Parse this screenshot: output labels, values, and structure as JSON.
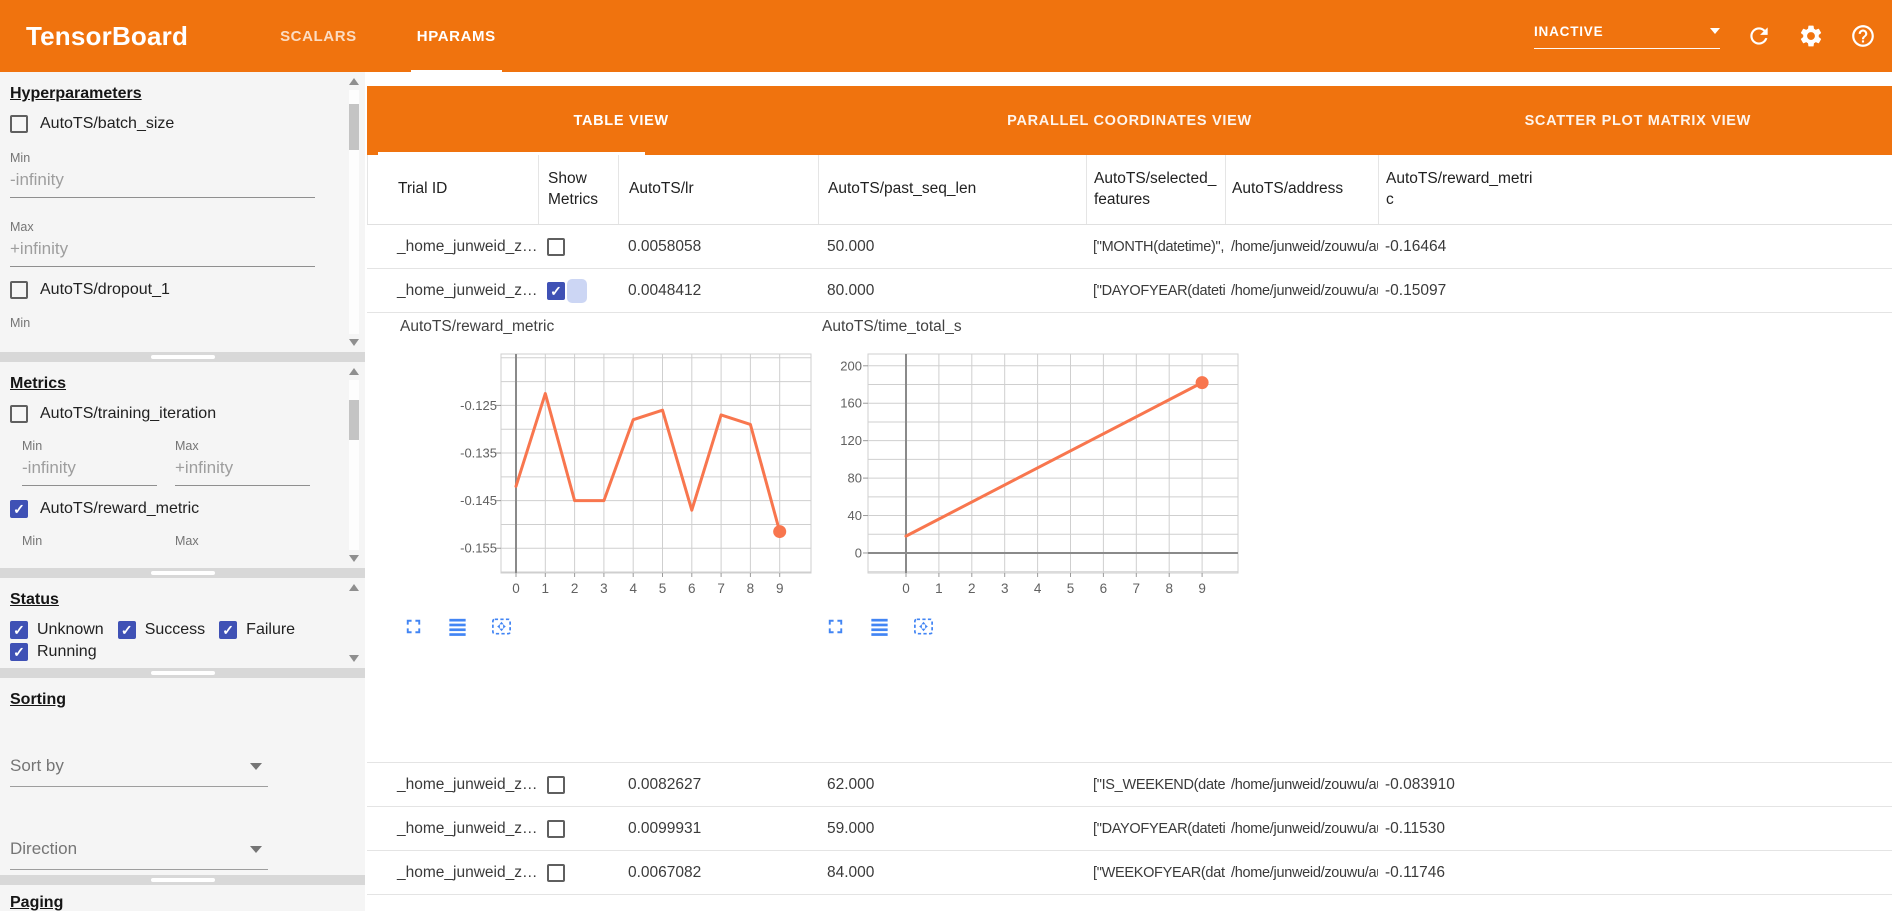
{
  "app": {
    "title": "TensorBoard",
    "nav_tabs": [
      {
        "label": "SCALARS",
        "active": false
      },
      {
        "label": "HPARAMS",
        "active": true
      }
    ],
    "run_status": {
      "value": "INACTIVE"
    },
    "header_icons": [
      "refresh-icon",
      "settings-icon",
      "help-icon"
    ],
    "colors": {
      "header_orange": "#f0730e",
      "checkbox_blue": "#3f51b5",
      "chart_line_orange": "#f8764e",
      "tool_icon_blue": "#4285f4"
    }
  },
  "sidebar": {
    "hyperparameters": {
      "title": "Hyperparameters",
      "items": [
        {
          "label": "AutoTS/batch_size",
          "checked": false
        },
        {
          "label": "AutoTS/dropout_1",
          "checked": false
        }
      ],
      "min_label": "Min",
      "max_label": "Max",
      "min_value": "-infinity",
      "max_value": "+infinity"
    },
    "metrics": {
      "title": "Metrics",
      "items": [
        {
          "label": "AutoTS/training_iteration",
          "checked": false
        },
        {
          "label": "AutoTS/reward_metric",
          "checked": true
        }
      ],
      "min_label": "Min",
      "max_label": "Max",
      "min_value": "-infinity",
      "max_value": "+infinity"
    },
    "status": {
      "title": "Status",
      "items": [
        {
          "label": "Unknown",
          "checked": true
        },
        {
          "label": "Success",
          "checked": true
        },
        {
          "label": "Failure",
          "checked": true
        },
        {
          "label": "Running",
          "checked": true
        }
      ]
    },
    "sorting": {
      "title": "Sorting",
      "sort_by_label": "Sort by",
      "direction_label": "Direction"
    },
    "paging": {
      "title": "Paging"
    }
  },
  "views": {
    "tabs": [
      "TABLE VIEW",
      "PARALLEL COORDINATES VIEW",
      "SCATTER PLOT MATRIX VIEW"
    ],
    "active": "TABLE VIEW"
  },
  "table": {
    "columns": [
      "Trial ID",
      "Show Metrics",
      "AutoTS/lr",
      "AutoTS/past_seq_len",
      "AutoTS/selected_features",
      "AutoTS/address",
      "AutoTS/reward_metric"
    ],
    "rows": [
      {
        "trial_id": "_home_junweid_z…",
        "show_metrics": false,
        "lr": "0.0058058",
        "past_seq_len": "50.000",
        "selected_features": "[\"MONTH(datetime)\", \"I…",
        "address": "/home/junweid/zouwu/aut…",
        "reward_metric": "-0.16464"
      },
      {
        "trial_id": "_home_junweid_z…",
        "show_metrics": true,
        "lr": "0.0048412",
        "past_seq_len": "80.000",
        "selected_features": "[\"DAYOFYEAR(datetime…",
        "address": "/home/junweid/zouwu/aut…",
        "reward_metric": "-0.15097"
      },
      {
        "trial_id": "_home_junweid_z…",
        "show_metrics": false,
        "lr": "0.0082627",
        "past_seq_len": "62.000",
        "selected_features": "[\"IS_WEEKEND(datetim…",
        "address": "/home/junweid/zouwu/aut…",
        "reward_metric": "-0.083910"
      },
      {
        "trial_id": "_home_junweid_z…",
        "show_metrics": false,
        "lr": "0.0099931",
        "past_seq_len": "59.000",
        "selected_features": "[\"DAYOFYEAR(datetime…",
        "address": "/home/junweid/zouwu/aut…",
        "reward_metric": "-0.11530"
      },
      {
        "trial_id": "_home_junweid_z…",
        "show_metrics": false,
        "lr": "0.0067082",
        "past_seq_len": "84.000",
        "selected_features": "[\"WEEKOFYEAR(dateti…",
        "address": "/home/junweid/zouwu/aut…",
        "reward_metric": "-0.11746"
      }
    ]
  },
  "chart_data": [
    {
      "type": "line",
      "title": "AutoTS/reward_metric",
      "x": [
        0,
        1,
        2,
        3,
        4,
        5,
        6,
        7,
        8,
        9
      ],
      "values": [
        -0.142,
        -0.1225,
        -0.145,
        -0.145,
        -0.128,
        -0.126,
        -0.147,
        -0.127,
        -0.129,
        -0.1515
      ],
      "xticks": [
        0,
        1,
        2,
        3,
        4,
        5,
        6,
        7,
        8,
        9
      ],
      "yticks": [
        -0.125,
        -0.135,
        -0.145,
        -0.155
      ],
      "ylim": [
        -0.1602,
        -0.1142
      ],
      "y_minor_step": 0.005,
      "y_decimals": 3,
      "grid": true,
      "legend": "none",
      "marker_last_point": true,
      "line_color": "#f8764e",
      "toolbar_icons": [
        "fullscreen-icon",
        "data-table-icon",
        "fit-to-view-icon"
      ]
    },
    {
      "type": "line",
      "title": "AutoTS/time_total_s",
      "x": [
        0,
        9
      ],
      "values": [
        18,
        182
      ],
      "xticks": [
        0,
        1,
        2,
        3,
        4,
        5,
        6,
        7,
        8,
        9
      ],
      "yticks": [
        0,
        40,
        80,
        120,
        160,
        200
      ],
      "ylim": [
        -21.4,
        212.6
      ],
      "y_minor_step": 20,
      "y_decimals": 0,
      "grid": true,
      "legend": "none",
      "marker_last_point": true,
      "line_color": "#f8764e",
      "toolbar_icons": [
        "fullscreen-icon",
        "data-table-icon",
        "fit-to-view-icon"
      ]
    }
  ]
}
